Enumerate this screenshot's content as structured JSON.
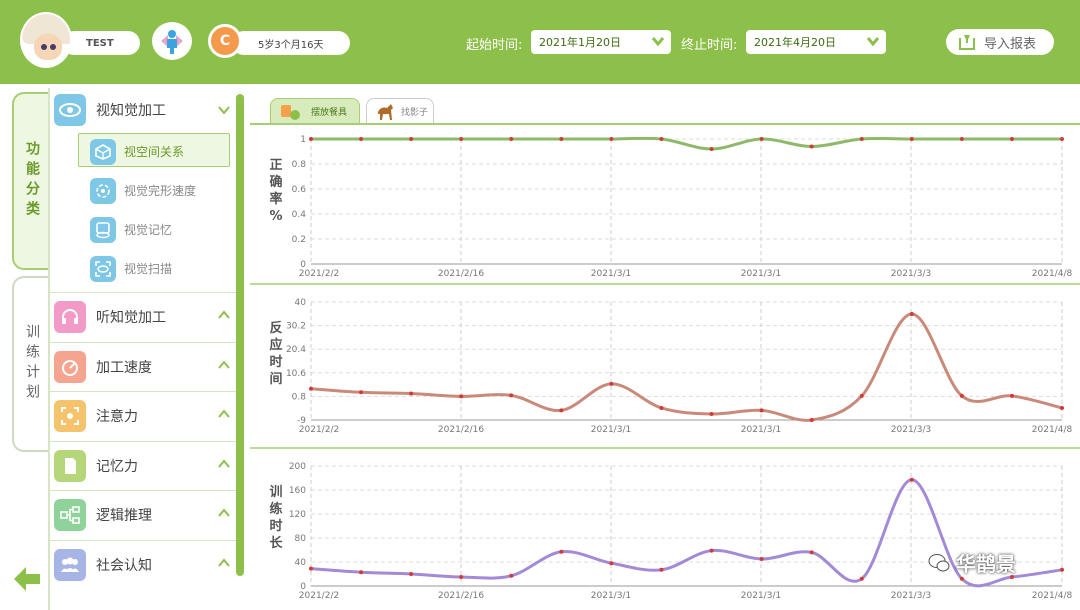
{
  "header": {
    "user_name": "TEST",
    "age_badge_icon_text": "C",
    "age_text": "5岁3个月16天",
    "start_label": "起始时间:",
    "start_value": "2021年1月20日",
    "end_label": "终止时间:",
    "end_value": "2021年4月20日",
    "export_label": "导入报表",
    "avatar_icon": "child-avatar-icon",
    "gender_icon": "boy-icon",
    "brand_color": "#8dc04a"
  },
  "side_tabs": {
    "active": "功能分类",
    "inactive": "训练计划"
  },
  "sidebar": {
    "categories": [
      {
        "label": "视知觉加工",
        "icon": "eye-icon",
        "color": "#7fc7e6",
        "expanded": true,
        "children": [
          {
            "label": "视空间关系",
            "icon": "cube-icon",
            "active": true
          },
          {
            "label": "视觉完形速度",
            "icon": "shape-complete-icon",
            "active": false
          },
          {
            "label": "视觉记忆",
            "icon": "visual-memory-icon",
            "active": false
          },
          {
            "label": "视觉扫描",
            "icon": "scan-icon",
            "active": false
          }
        ]
      },
      {
        "label": "听知觉加工",
        "icon": "headphones-icon",
        "color": "#f29ac8"
      },
      {
        "label": "加工速度",
        "icon": "speedometer-icon",
        "color": "#f5a48f"
      },
      {
        "label": "注意力",
        "icon": "focus-icon",
        "color": "#f5c36b"
      },
      {
        "label": "记忆力",
        "icon": "memory-card-icon",
        "color": "#b5d77a"
      },
      {
        "label": "逻辑推理",
        "icon": "flowchart-icon",
        "color": "#8fd29a"
      },
      {
        "label": "社会认知",
        "icon": "people-icon",
        "color": "#a7b4e6"
      }
    ]
  },
  "content_tabs": [
    {
      "label": "摆放餐具",
      "icon": "tableware-icon",
      "active": true
    },
    {
      "label": "找影子",
      "icon": "horse-icon",
      "active": false
    }
  ],
  "watermark": "华鹊景",
  "chart_data": [
    {
      "type": "line",
      "ylabel": "正确率%",
      "ylim": [
        0,
        1
      ],
      "yticks": [
        "1",
        "0.8",
        "0.6",
        "0.4",
        "0.2",
        "0"
      ],
      "xtick_labels": [
        "2021/2/2",
        "2021/2/16",
        "2021/3/1",
        "2021/3/1",
        "2021/3/3",
        "2021/4/8"
      ],
      "color": "#8fb86a",
      "values": [
        1,
        1,
        1,
        1,
        1,
        1,
        1,
        1,
        0.92,
        1,
        0.94,
        1,
        1,
        1,
        1,
        1
      ]
    },
    {
      "type": "line",
      "ylabel": "反应时间",
      "ylim": [
        -9,
        40
      ],
      "yticks": [
        "40",
        "30.2",
        "20.4",
        "10.6",
        "0.8",
        "-9"
      ],
      "xtick_labels": [
        "2021/2/2",
        "2021/2/16",
        "2021/3/1",
        "2021/3/1",
        "2021/3/3",
        "2021/4/8"
      ],
      "color": "#c98a7a",
      "values": [
        4,
        2.5,
        2,
        0.8,
        1.2,
        -5,
        6,
        -4,
        -6.5,
        -5,
        -9,
        1,
        35,
        1,
        1,
        -4
      ]
    },
    {
      "type": "line",
      "ylabel": "训练时长",
      "ylim": [
        0,
        200
      ],
      "yticks": [
        "200",
        "160",
        "120",
        "80",
        "40",
        "0"
      ],
      "xtick_labels": [
        "2021/2/2",
        "2021/2/16",
        "2021/3/1",
        "2021/3/1",
        "2021/3/3",
        "2021/4/8"
      ],
      "color": "#a28ad6",
      "values": [
        29,
        23,
        20,
        15,
        17,
        57,
        38,
        27,
        59,
        45,
        56,
        12,
        177,
        12,
        15,
        27
      ]
    }
  ]
}
